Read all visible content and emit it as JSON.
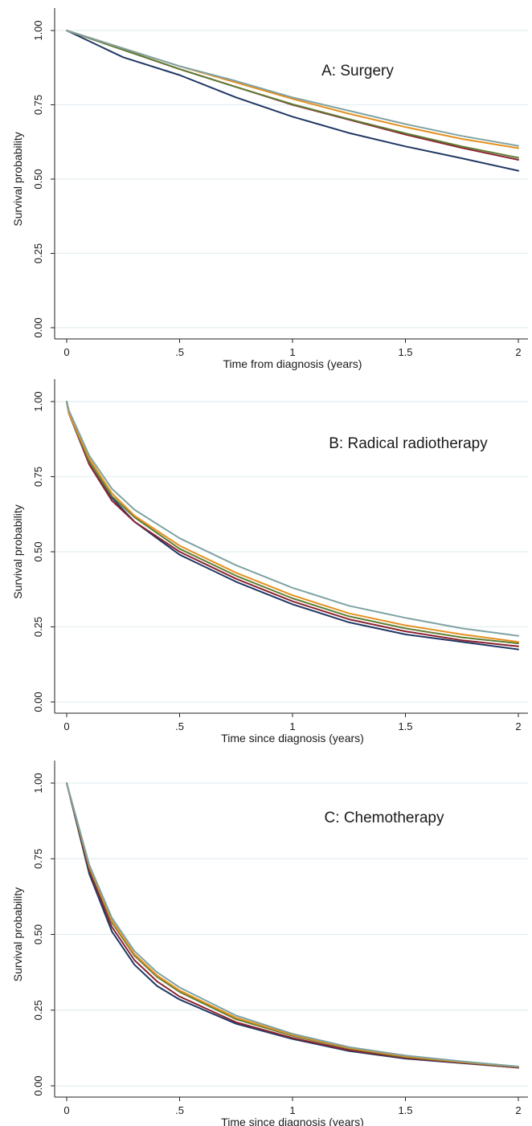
{
  "figure": {
    "background": "#ffffff",
    "grid_color": "#e3eef1",
    "axis_color": "#222222"
  },
  "chart_data": [
    {
      "type": "line",
      "title": "A: Surgery",
      "xlabel": "Time from diagnosis (years)",
      "ylabel": "Survival probability",
      "xlim": [
        0,
        2
      ],
      "ylim": [
        0,
        1
      ],
      "xticks": [
        0,
        0.5,
        1,
        1.5,
        2
      ],
      "xtick_labels": [
        "0",
        ".5",
        "1",
        "1.5",
        "2"
      ],
      "yticks": [
        0,
        0.25,
        0.5,
        0.75,
        1
      ],
      "ytick_labels": [
        "0.00",
        "0.25",
        "0.50",
        "0.75",
        "1.00"
      ],
      "grid": true,
      "legend": "none",
      "x": [
        0,
        0.25,
        0.5,
        0.75,
        1,
        1.25,
        1.5,
        1.75,
        2
      ],
      "series": [
        {
          "color": "#1f3864",
          "values": [
            1.0,
            0.91,
            0.85,
            0.775,
            0.71,
            0.655,
            0.61,
            0.57,
            0.528
          ]
        },
        {
          "color": "#8b2332",
          "values": [
            1.0,
            0.935,
            0.87,
            0.81,
            0.75,
            0.7,
            0.65,
            0.605,
            0.565
          ]
        },
        {
          "color": "#5f7d33",
          "values": [
            1.0,
            0.935,
            0.87,
            0.81,
            0.752,
            0.702,
            0.654,
            0.61,
            0.572
          ]
        },
        {
          "color": "#e5901f",
          "values": [
            1.0,
            0.94,
            0.88,
            0.825,
            0.77,
            0.72,
            0.675,
            0.635,
            0.604
          ]
        },
        {
          "color": "#7fa2a3",
          "values": [
            1.0,
            0.94,
            0.88,
            0.83,
            0.775,
            0.73,
            0.685,
            0.645,
            0.612
          ]
        }
      ]
    },
    {
      "type": "line",
      "title": "B: Radical radiotherapy",
      "xlabel": "Time since diagnosis (years)",
      "ylabel": "Survival probability",
      "xlim": [
        0,
        2
      ],
      "ylim": [
        0,
        1
      ],
      "xticks": [
        0,
        0.5,
        1,
        1.5,
        2
      ],
      "xtick_labels": [
        "0",
        ".5",
        "1",
        "1.5",
        "2"
      ],
      "yticks": [
        0,
        0.25,
        0.5,
        0.75,
        1
      ],
      "ytick_labels": [
        "0.00",
        "0.25",
        "0.50",
        "0.75",
        "1.00"
      ],
      "grid": true,
      "legend": "none",
      "x": [
        0,
        0.01,
        0.1,
        0.2,
        0.3,
        0.5,
        0.75,
        1,
        1.25,
        1.5,
        1.75,
        2
      ],
      "series": [
        {
          "color": "#1f3864",
          "values": [
            1.0,
            0.96,
            0.8,
            0.68,
            0.6,
            0.49,
            0.4,
            0.325,
            0.265,
            0.225,
            0.2,
            0.175
          ]
        },
        {
          "color": "#8b2332",
          "values": [
            1.0,
            0.96,
            0.79,
            0.67,
            0.6,
            0.5,
            0.41,
            0.335,
            0.275,
            0.235,
            0.205,
            0.185
          ]
        },
        {
          "color": "#5f7d33",
          "values": [
            1.0,
            0.96,
            0.8,
            0.685,
            0.615,
            0.51,
            0.42,
            0.345,
            0.285,
            0.245,
            0.215,
            0.195
          ]
        },
        {
          "color": "#e5901f",
          "values": [
            1.0,
            0.96,
            0.81,
            0.695,
            0.62,
            0.52,
            0.43,
            0.355,
            0.295,
            0.255,
            0.225,
            0.2
          ]
        },
        {
          "color": "#7fa2a3",
          "values": [
            1.0,
            0.97,
            0.82,
            0.71,
            0.64,
            0.545,
            0.455,
            0.38,
            0.32,
            0.28,
            0.245,
            0.22
          ]
        }
      ]
    },
    {
      "type": "line",
      "title": "C: Chemotherapy",
      "xlabel": "Time since diagnosis (years)",
      "ylabel": "Survival probability",
      "xlim": [
        0,
        2
      ],
      "ylim": [
        0,
        1
      ],
      "xticks": [
        0,
        0.5,
        1,
        1.5,
        2
      ],
      "xtick_labels": [
        "0",
        ".5",
        "1",
        "1.5",
        "2"
      ],
      "yticks": [
        0,
        0.25,
        0.5,
        0.75,
        1
      ],
      "ytick_labels": [
        "0.00",
        "0.25",
        "0.50",
        "0.75",
        "1.00"
      ],
      "grid": true,
      "legend": "none",
      "x": [
        0,
        0.1,
        0.2,
        0.3,
        0.4,
        0.5,
        0.75,
        1,
        1.25,
        1.5,
        1.75,
        2
      ],
      "series": [
        {
          "color": "#1f3864",
          "values": [
            1.0,
            0.7,
            0.51,
            0.4,
            0.33,
            0.285,
            0.205,
            0.155,
            0.115,
            0.09,
            0.075,
            0.06
          ]
        },
        {
          "color": "#8b2332",
          "values": [
            1.0,
            0.71,
            0.525,
            0.415,
            0.345,
            0.295,
            0.21,
            0.158,
            0.118,
            0.092,
            0.076,
            0.06
          ]
        },
        {
          "color": "#5f7d33",
          "values": [
            1.0,
            0.72,
            0.54,
            0.43,
            0.36,
            0.31,
            0.22,
            0.165,
            0.123,
            0.095,
            0.078,
            0.062
          ]
        },
        {
          "color": "#e5901f",
          "values": [
            1.0,
            0.725,
            0.545,
            0.435,
            0.365,
            0.315,
            0.225,
            0.168,
            0.125,
            0.097,
            0.079,
            0.063
          ]
        },
        {
          "color": "#7fa2a3",
          "values": [
            1.0,
            0.73,
            0.555,
            0.445,
            0.375,
            0.325,
            0.232,
            0.172,
            0.128,
            0.1,
            0.081,
            0.064
          ]
        }
      ]
    }
  ]
}
